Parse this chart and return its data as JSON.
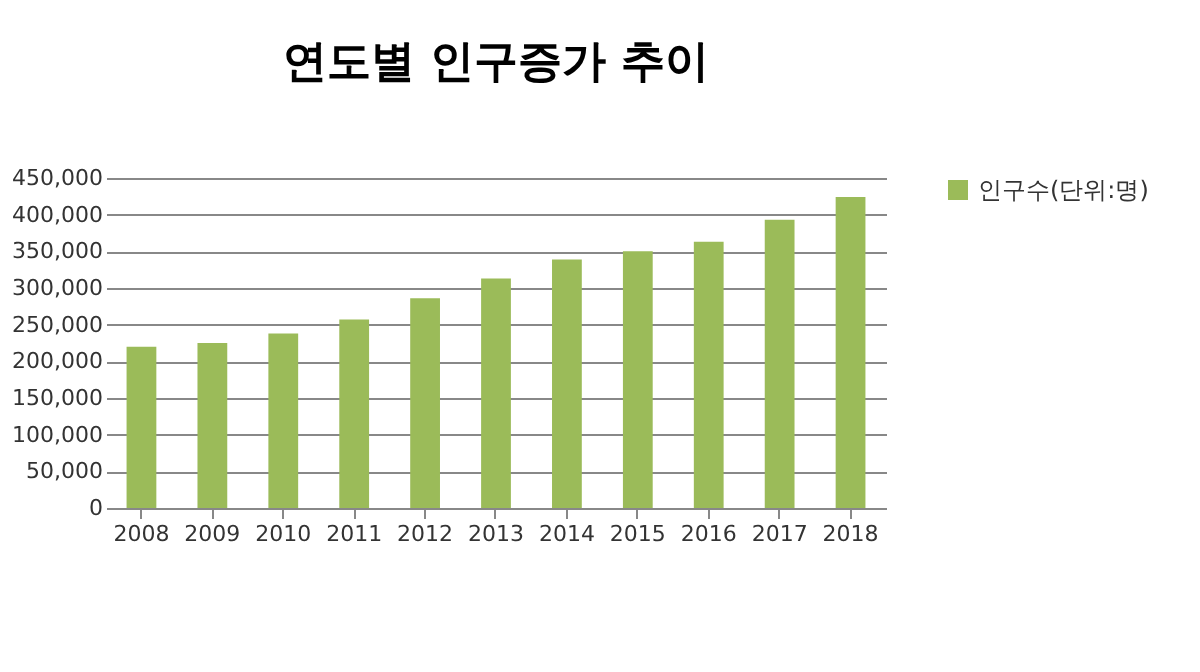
{
  "chart_data": {
    "type": "bar",
    "title": "연도별 인구증가 추이",
    "categories": [
      "2008",
      "2009",
      "2010",
      "2011",
      "2012",
      "2013",
      "2014",
      "2015",
      "2016",
      "2017",
      "2018"
    ],
    "series": [
      {
        "name": "인구수(단위:명)",
        "color": "#9bbb59",
        "values": [
          220000,
          225000,
          238000,
          257000,
          286000,
          313000,
          339000,
          350000,
          363000,
          393000,
          424000
        ]
      }
    ],
    "ylim": [
      0,
      450000
    ],
    "yticks": [
      0,
      {
        "value": 50000,
        "label": "50,000"
      },
      {
        "value": 100000,
        "label": "100,000"
      },
      {
        "value": 150000,
        "label": "150,000"
      },
      {
        "value": 200000,
        "label": "200,000"
      },
      {
        "value": 250000,
        "label": "250,000"
      },
      {
        "value": 300000,
        "label": "300,000"
      },
      {
        "value": 350000,
        "label": "350,000"
      },
      {
        "value": 400000,
        "label": "400,000"
      },
      {
        "value": 450000,
        "label": "450,000"
      }
    ],
    "grid": "y",
    "legend": "right"
  }
}
